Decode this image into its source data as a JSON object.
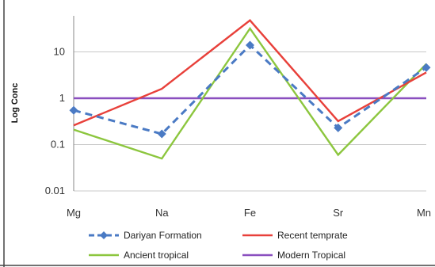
{
  "chart_data": {
    "type": "line",
    "title": "",
    "xlabel": "",
    "ylabel": "Log Conc",
    "categories": [
      "Mg",
      "Na",
      "Fe",
      "Sr",
      "Mn"
    ],
    "y_scale": "log",
    "ylim": [
      0.01,
      60
    ],
    "y_ticks": [
      {
        "value": 0.01,
        "label": "0.01"
      },
      {
        "value": 0.1,
        "label": "0.1"
      },
      {
        "value": 1,
        "label": "1"
      },
      {
        "value": 10,
        "label": "10"
      }
    ],
    "grid": true,
    "legend_position": "bottom",
    "series": [
      {
        "name": "Dariyan Formation",
        "color": "#4a7ac4",
        "style": "dashed-diamond",
        "values": [
          0.55,
          0.17,
          14,
          0.23,
          4.6
        ]
      },
      {
        "name": "Recent temprate",
        "color": "#e8403a",
        "style": "solid",
        "values": [
          0.26,
          1.6,
          48,
          0.32,
          3.6
        ]
      },
      {
        "name": "Ancient tropical",
        "color": "#8cc63e",
        "style": "solid",
        "values": [
          0.21,
          0.05,
          32,
          0.06,
          5.5
        ]
      },
      {
        "name": "Modern Tropical",
        "color": "#8a4fbf",
        "style": "solid",
        "values": [
          1,
          1,
          1,
          1,
          1
        ]
      }
    ]
  }
}
